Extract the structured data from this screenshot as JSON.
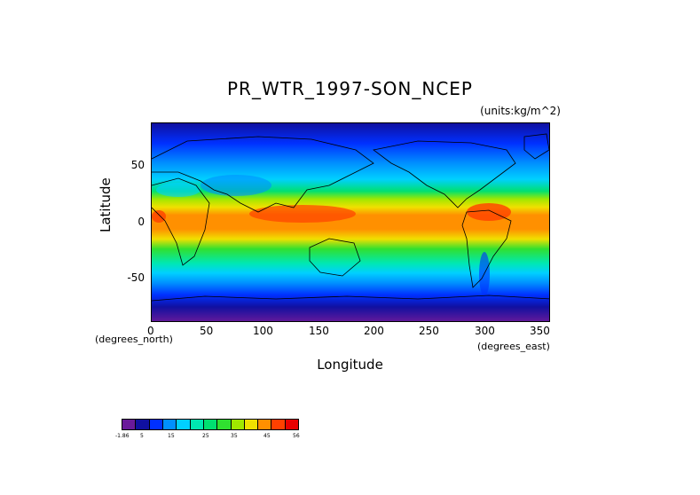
{
  "title": "PR_WTR_1997-SON_NCEP",
  "units": "(units:kg/m^2)",
  "axes": {
    "x_label": "Longitude",
    "y_label": "Latitude",
    "x_units": "(degrees_east)",
    "y_units": "(degrees_north)",
    "x_ticks": [
      "0",
      "50",
      "100",
      "150",
      "200",
      "250",
      "300",
      "350"
    ],
    "y_ticks": [
      "50",
      "0",
      "-50"
    ]
  },
  "map": {
    "lon_range": [
      0,
      360
    ],
    "lat_range": [
      -90,
      90
    ],
    "field": "precipitable water, SON 1997 mean"
  },
  "colorbar": {
    "colors": [
      "#6a1a9a",
      "#1010a0",
      "#0030ff",
      "#0090ff",
      "#00d0ff",
      "#00e8b0",
      "#00e070",
      "#30e030",
      "#a0e800",
      "#f0e000",
      "#ff9000",
      "#ff4000",
      "#e80000"
    ],
    "labels": [
      "-1.86",
      "5",
      "15",
      "25",
      "35",
      "45",
      "56"
    ]
  },
  "chart_data": {
    "type": "heatmap",
    "title": "PR_WTR_1997-SON_NCEP",
    "xlabel": "Longitude",
    "ylabel": "Latitude",
    "xlim": [
      0,
      360
    ],
    "ylim": [
      -90,
      90
    ],
    "colorbar_range": [
      -1.86,
      56
    ]
  }
}
